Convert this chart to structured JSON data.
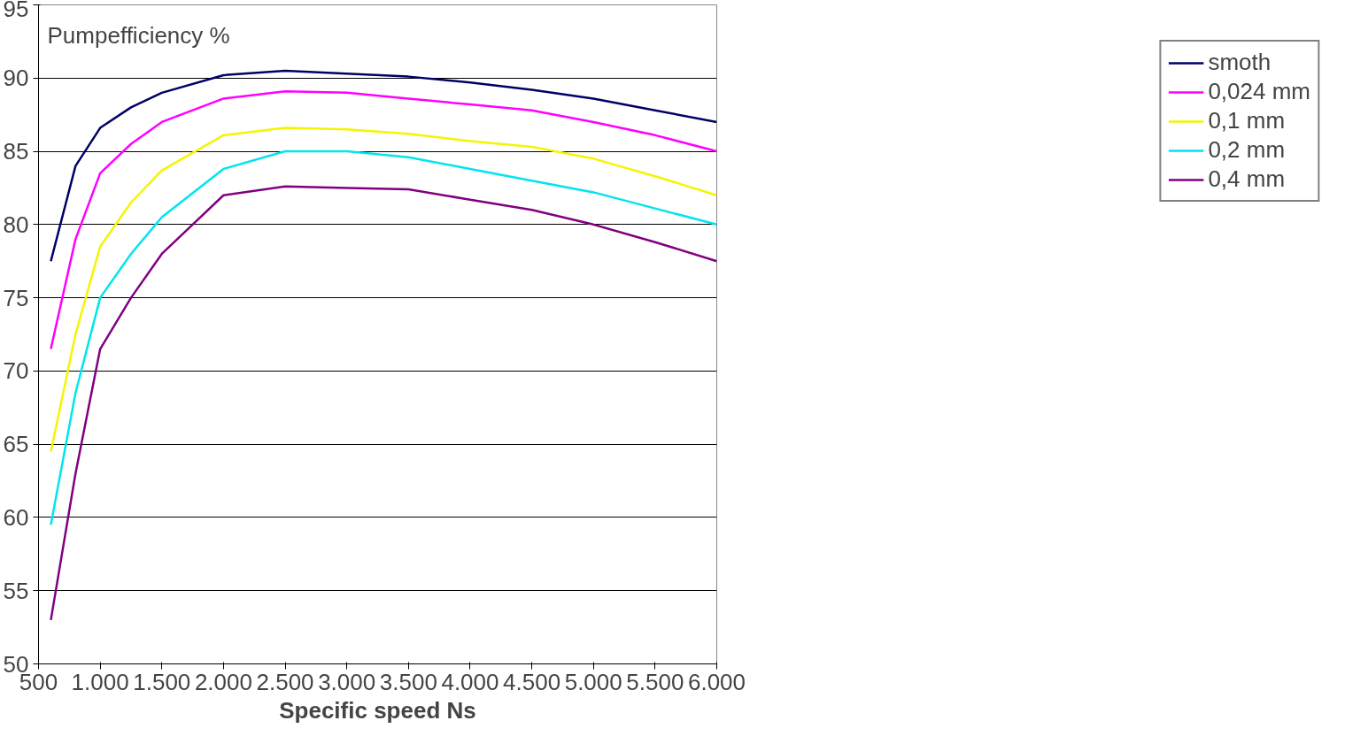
{
  "chart_data": {
    "type": "line",
    "ylabel": "Pumpefficiency %",
    "xlabel": "Specific speed Ns",
    "x": [
      600,
      800,
      1000,
      1250,
      1500,
      2000,
      2500,
      3000,
      3500,
      4000,
      4500,
      5000,
      5500,
      6000
    ],
    "series": [
      {
        "name": "smoth",
        "color": "#000066",
        "values": [
          77.5,
          84.0,
          86.6,
          88.0,
          89.0,
          90.2,
          90.5,
          90.3,
          90.1,
          89.7,
          89.2,
          88.6,
          87.8,
          87.0
        ]
      },
      {
        "name": "0,024 mm",
        "color": "#ff00ff",
        "values": [
          71.5,
          79.0,
          83.5,
          85.5,
          87.0,
          88.6,
          89.1,
          89.0,
          88.6,
          88.2,
          87.8,
          87.0,
          86.1,
          85.0
        ]
      },
      {
        "name": "0,1 mm",
        "color": "#f5f500",
        "values": [
          64.5,
          72.5,
          78.5,
          81.5,
          83.7,
          86.1,
          86.6,
          86.5,
          86.2,
          85.7,
          85.3,
          84.5,
          83.3,
          82.0
        ]
      },
      {
        "name": "0,2 mm",
        "color": "#00e5ee",
        "values": [
          59.5,
          68.5,
          75.0,
          78.0,
          80.5,
          83.8,
          85.0,
          85.0,
          84.6,
          83.8,
          83.0,
          82.2,
          81.1,
          80.0
        ]
      },
      {
        "name": "0,4 mm",
        "color": "#800080",
        "values": [
          53.0,
          63.0,
          71.5,
          75.0,
          78.0,
          82.0,
          82.6,
          82.5,
          82.4,
          81.7,
          81.0,
          80.0,
          78.8,
          77.5
        ]
      }
    ],
    "xlim": [
      500,
      6000
    ],
    "ylim": [
      50,
      95
    ],
    "xticks": [
      500,
      {
        "value": 1000,
        "label": "1.000"
      },
      {
        "value": 1500,
        "label": "1.500"
      },
      {
        "value": 2000,
        "label": "2.000"
      },
      {
        "value": 2500,
        "label": "2.500"
      },
      {
        "value": 3000,
        "label": "3.000"
      },
      {
        "value": 3500,
        "label": "3.500"
      },
      {
        "value": 4000,
        "label": "4.000"
      },
      {
        "value": 4500,
        "label": "4.500"
      },
      {
        "value": 5000,
        "label": "5.000"
      },
      {
        "value": 5500,
        "label": "5.500"
      },
      {
        "value": 6000,
        "label": "6.000"
      }
    ],
    "yticks": [
      50,
      55,
      60,
      65,
      70,
      75,
      80,
      85,
      90,
      95
    ],
    "grid": "y",
    "legend": "right",
    "marker": "none",
    "line_style": "solid"
  }
}
